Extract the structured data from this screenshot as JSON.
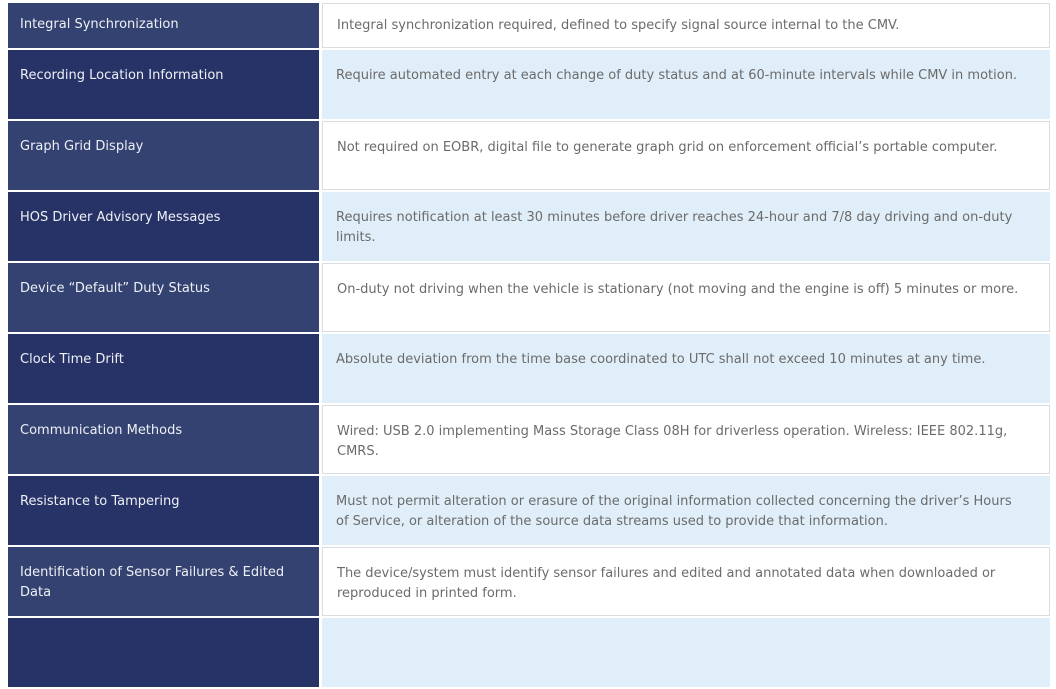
{
  "table": {
    "rows": [
      {
        "label": "Integral Synchronization",
        "description": "Integral synchronization required, defined to specify signal source internal to the CMV."
      },
      {
        "label": "Recording Location Information",
        "description": "Require automated entry at each change of duty status and at 60-minute intervals while CMV in motion."
      },
      {
        "label": "Graph Grid Display",
        "description": "Not required on EOBR, digital file to generate graph grid on enforcement official’s portable computer."
      },
      {
        "label": "HOS Driver Advisory Messages",
        "description": "Requires notification at least 30 minutes before driver reaches 24-hour and 7/8 day driving and on-duty limits."
      },
      {
        "label": "Device “Default” Duty Status",
        "description": "On-duty not driving when the vehicle is stationary (not moving and the engine is off) 5 minutes or more."
      },
      {
        "label": "Clock Time Drift",
        "description": "Absolute deviation from the time base coordinated to UTC shall not exceed 10 minutes at any time."
      },
      {
        "label": "Communication Methods",
        "description": "Wired: USB 2.0 implementing Mass Storage Class 08H for driverless operation. Wireless: IEEE 802.11g, CMRS."
      },
      {
        "label": "Resistance to Tampering",
        "description": "Must not permit alteration or erasure of the original information collected concerning the driver’s Hours of Service, or alteration of the source data streams used to provide that information."
      },
      {
        "label": "Identification of Sensor Failures & Edited Data",
        "description": "The device/system must identify sensor failures and edited and annotated data when downloaded or reproduced in printed form."
      }
    ]
  },
  "colors": {
    "navy-light": "#334270",
    "navy-dark": "#273366",
    "blue-pale": "#dfeef8",
    "cell-border": "#d9dce1",
    "label-text": "#eef0f6",
    "desc-text": "#6b6b6b"
  }
}
